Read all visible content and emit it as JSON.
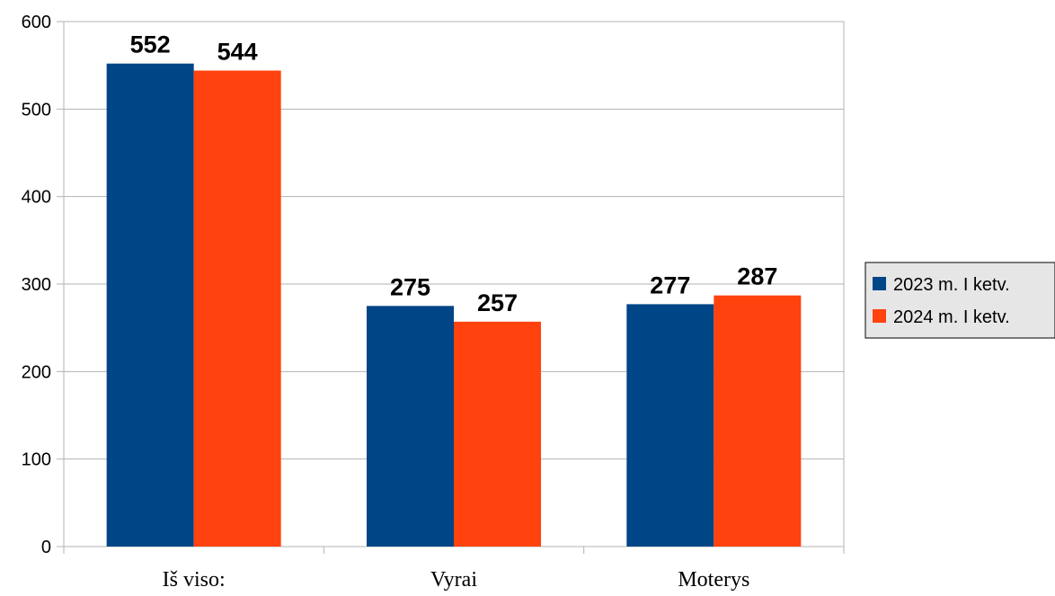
{
  "chart_data": {
    "type": "bar",
    "title": "",
    "xlabel": "",
    "ylabel": "",
    "categories": [
      "Iš viso:",
      "Vyrai",
      "Moterys"
    ],
    "series": [
      {
        "name": "2023 m. I ketv.",
        "color": "#004586",
        "values": [
          552,
          275,
          277
        ]
      },
      {
        "name": "2024 m. I ketv.",
        "color": "#ff420e",
        "values": [
          544,
          257,
          287
        ]
      }
    ],
    "ylim": [
      0,
      600
    ],
    "yticks": [
      0,
      100,
      200,
      300,
      400,
      500,
      600
    ],
    "grid": true,
    "legend_position": "right"
  }
}
